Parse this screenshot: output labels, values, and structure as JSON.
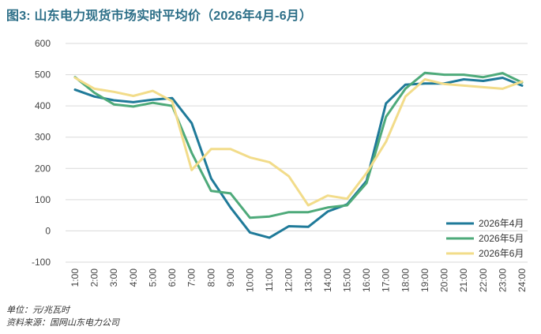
{
  "title": "图3: 山东电力现货市场实时平均价（2026年4月-6月）",
  "unit_note": "单位：元/兆瓦时",
  "source_note": "资料来源：国网山东电力公司",
  "colors": {
    "title": "#2d6f88",
    "grid": "#d9d9d9",
    "axis_text": "#444444"
  },
  "chart_data": {
    "type": "line",
    "title": "图3: 山东电力现货市场实时平均价（2026年4月-6月）",
    "xlabel": "",
    "ylabel": "",
    "ylim": [
      -100,
      600
    ],
    "yticks": [
      -100,
      0,
      100,
      200,
      300,
      400,
      500,
      600
    ],
    "grid": true,
    "legend_position": "bottom-right",
    "categories": [
      "1:00",
      "2:00",
      "3:00",
      "4:00",
      "5:00",
      "6:00",
      "7:00",
      "8:00",
      "9:00",
      "10:00",
      "11:00",
      "12:00",
      "13:00",
      "14:00",
      "15:00",
      "16:00",
      "17:00",
      "18:00",
      "19:00",
      "20:00",
      "21:00",
      "22:00",
      "23:00",
      "24:00"
    ],
    "series": [
      {
        "name": "2026年4月",
        "color": "#1f7a99",
        "values": [
          452,
          430,
          418,
          412,
          420,
          425,
          345,
          168,
          75,
          -5,
          -22,
          15,
          13,
          62,
          85,
          160,
          408,
          468,
          472,
          472,
          485,
          480,
          490,
          465
        ]
      },
      {
        "name": "2026年5月",
        "color": "#4eaa7a",
        "values": [
          492,
          442,
          405,
          398,
          410,
          400,
          250,
          128,
          120,
          42,
          46,
          60,
          60,
          75,
          82,
          153,
          365,
          455,
          506,
          500,
          500,
          492,
          505,
          475
        ]
      },
      {
        "name": "2026年6月",
        "color": "#f2dc8a",
        "values": [
          490,
          455,
          445,
          432,
          448,
          415,
          195,
          262,
          262,
          235,
          220,
          175,
          82,
          113,
          103,
          185,
          285,
          430,
          485,
          470,
          465,
          460,
          455,
          478
        ]
      }
    ]
  }
}
